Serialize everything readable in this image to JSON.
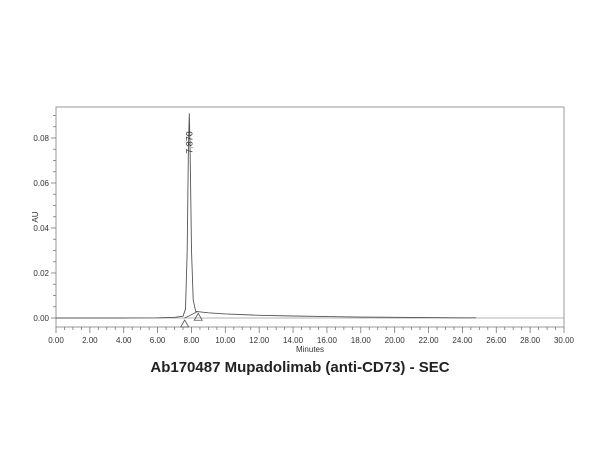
{
  "chart_data": {
    "type": "line",
    "title": "Ab170487 Mupadolimab (anti-CD73) - SEC",
    "xlabel": "Minutes",
    "ylabel": "AU",
    "xlim": [
      0,
      30
    ],
    "ylim": [
      -0.002,
      0.093
    ],
    "x_ticks": [
      "0.00",
      "2.00",
      "4.00",
      "6.00",
      "8.00",
      "10.00",
      "12.00",
      "14.00",
      "16.00",
      "18.00",
      "20.00",
      "22.00",
      "24.00",
      "26.00",
      "28.00",
      "30.00"
    ],
    "y_ticks": [
      "0.00",
      "0.02",
      "0.04",
      "0.06",
      "0.08"
    ],
    "grid": false,
    "legend": null,
    "series": [
      {
        "name": "SEC chromatogram",
        "x": [
          0,
          2,
          4,
          6,
          7.0,
          7.5,
          7.65,
          7.75,
          7.82,
          7.87,
          7.92,
          8.0,
          8.1,
          8.25,
          8.4,
          8.6,
          9.0,
          10.0,
          12.0,
          14.0,
          16.0,
          18.0,
          20.0,
          22.0,
          24.0,
          24.8
        ],
        "y": [
          0.0,
          0.0,
          0.0,
          0.0001,
          0.0003,
          0.0008,
          0.004,
          0.03,
          0.075,
          0.091,
          0.075,
          0.03,
          0.008,
          0.003,
          0.0028,
          0.0026,
          0.0023,
          0.0018,
          0.0012,
          0.0009,
          0.0006,
          0.0004,
          0.0003,
          0.0002,
          0.0001,
          0.0001
        ]
      }
    ],
    "annotations": [
      {
        "type": "peak_label",
        "text": "7.870",
        "x": 7.87,
        "y": 0.091,
        "rotation": -90
      },
      {
        "type": "integration_marker",
        "shape": "triangle",
        "x": 7.6,
        "y": 0.0
      },
      {
        "type": "integration_marker",
        "shape": "triangle",
        "x": 8.4,
        "y": 0.003
      }
    ]
  }
}
